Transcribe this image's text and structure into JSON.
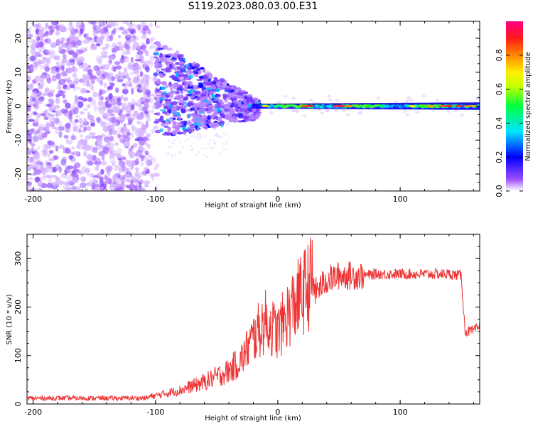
{
  "title": "S119.2023.080.03.00.E31",
  "chart_data": [
    {
      "type": "heatmap",
      "xlabel": "Height of straight line (km)",
      "ylabel": "Frequency (Hz)",
      "xlim": [
        -205,
        165
      ],
      "ylim": [
        -25,
        25
      ],
      "xticks": [
        -200,
        -100,
        0,
        100
      ],
      "yticks": [
        -20,
        -10,
        0,
        10,
        20
      ],
      "colorbar": {
        "label": "Normalized spectral amplitude",
        "range": [
          0,
          1
        ],
        "ticks": [
          "0.0",
          "0.2",
          "0.4",
          "0.6",
          "0.8"
        ],
        "colors": [
          "#ffffff",
          "#8000ff",
          "#0000ff",
          "#00ffff",
          "#00ff00",
          "#ffff00",
          "#ff8000",
          "#ff0000",
          "#ff0080"
        ]
      },
      "description_points": {
        "noise_region_km": [
          -205,
          -105
        ],
        "chirp_region_km": [
          -100,
          -20
        ],
        "tone_region_km": [
          -20,
          165
        ],
        "tone_frequency_hz": 0
      }
    },
    {
      "type": "line",
      "xlabel": "Height of straight line (km)",
      "ylabel": "SNR (10 * v/v)",
      "xlim": [
        -205,
        165
      ],
      "ylim": [
        0,
        350
      ],
      "xticks": [
        -200,
        -100,
        0,
        100
      ],
      "yticks": [
        0,
        100,
        200,
        300
      ],
      "color": "#ee3333",
      "series": [
        {
          "x": [
            -205,
            -150,
            -110,
            -100,
            -80,
            -60,
            -40,
            -30,
            -20,
            -10,
            0,
            10,
            20,
            30,
            40,
            50,
            60,
            70,
            80,
            100,
            120,
            140,
            150,
            153,
            160,
            165
          ],
          "y": [
            12,
            12,
            12,
            15,
            25,
            40,
            60,
            80,
            120,
            150,
            130,
            170,
            200,
            230,
            255,
            265,
            265,
            265,
            268,
            268,
            268,
            268,
            265,
            150,
            150,
            160
          ]
        }
      ]
    }
  ]
}
